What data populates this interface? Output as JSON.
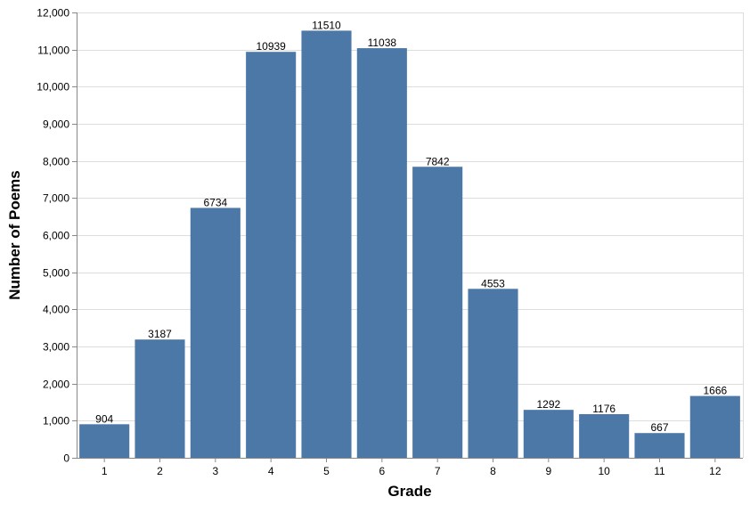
{
  "chart_data": {
    "type": "bar",
    "categories": [
      "1",
      "2",
      "3",
      "4",
      "5",
      "6",
      "7",
      "8",
      "9",
      "10",
      "11",
      "12"
    ],
    "values": [
      904,
      3187,
      6734,
      10939,
      11510,
      11038,
      7842,
      4553,
      1292,
      1176,
      667,
      1666
    ],
    "value_labels": [
      "904",
      "3187",
      "6734",
      "10939",
      "11510",
      "11038",
      "7842",
      "4553",
      "1292",
      "1176",
      "667",
      "1666"
    ],
    "xlabel": "Grade",
    "ylabel": "Number of Poems",
    "ylim": [
      0,
      12000
    ],
    "yticks": [
      0,
      1000,
      2000,
      3000,
      4000,
      5000,
      6000,
      7000,
      8000,
      9000,
      10000,
      11000,
      12000
    ],
    "ytick_labels": [
      "0",
      "1,000",
      "2,000",
      "3,000",
      "4,000",
      "5,000",
      "6,000",
      "7,000",
      "8,000",
      "9,000",
      "10,000",
      "11,000",
      "12,000"
    ],
    "grid": true,
    "bar_color": "#4c78a8"
  }
}
